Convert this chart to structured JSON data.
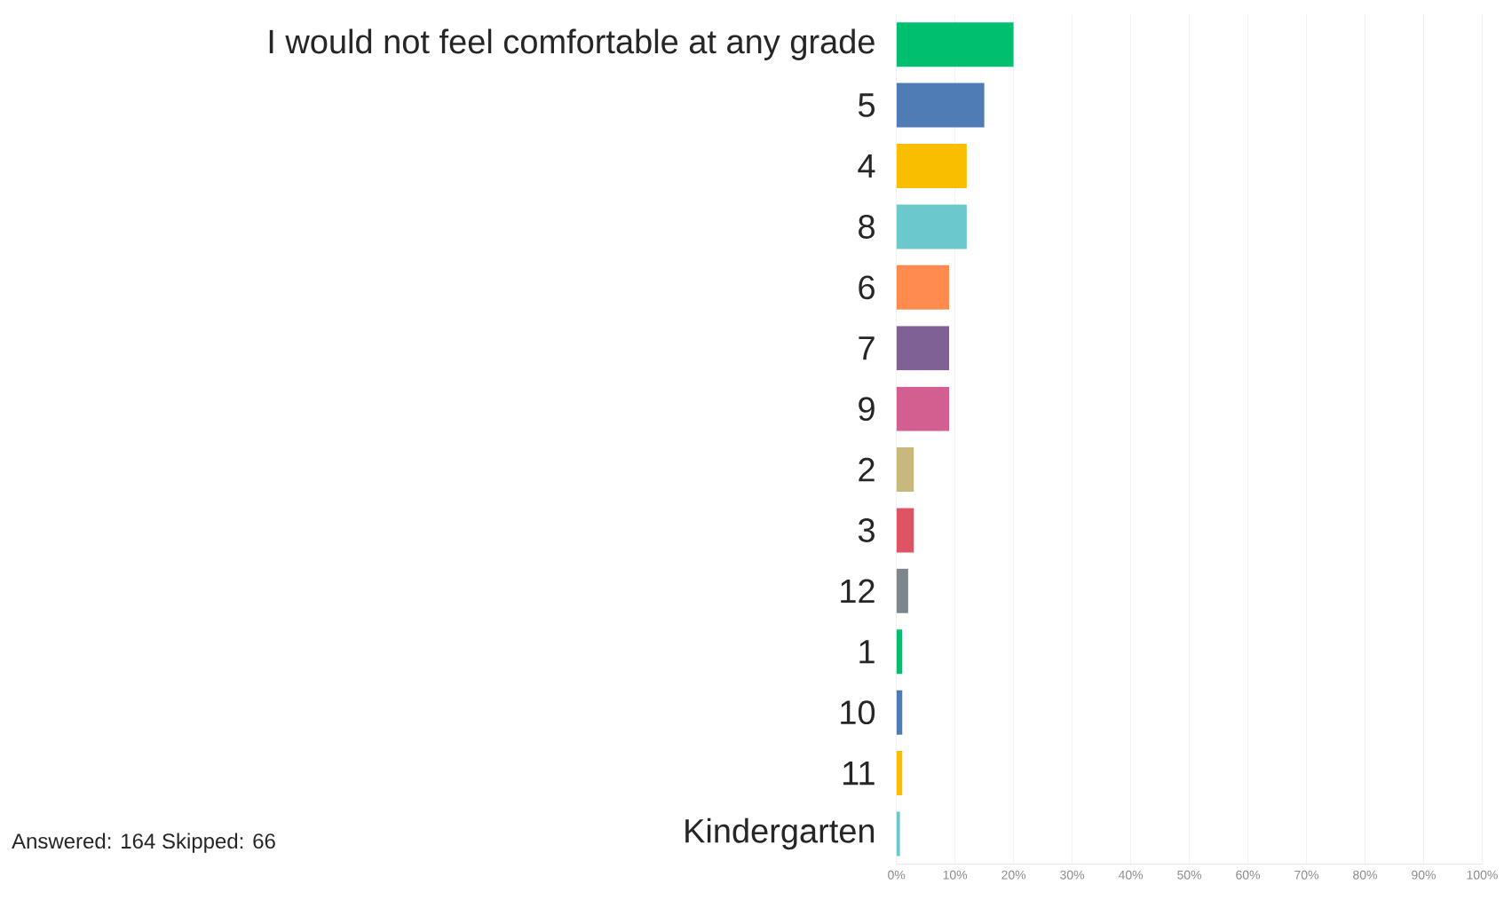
{
  "chart_data": {
    "type": "bar",
    "orientation": "horizontal",
    "categories": [
      "I would not feel comfortable at any grade",
      "5",
      "4",
      "8",
      "6",
      "7",
      "9",
      "2",
      "3",
      "12",
      "1",
      "10",
      "11",
      "Kindergarten"
    ],
    "values": [
      20,
      15,
      12,
      12,
      9,
      9,
      9,
      3,
      3,
      2,
      1,
      1,
      1,
      0.6
    ],
    "colors": [
      "#00bf6f",
      "#507cb6",
      "#f9be00",
      "#6bc8cd",
      "#ff8b4f",
      "#7f6195",
      "#d25f90",
      "#c9b87d",
      "#df5464",
      "#7d868c",
      "#00bf6f",
      "#507cb6",
      "#f9be00",
      "#6bc8cd"
    ],
    "xlim": [
      0,
      100
    ],
    "xticks": [
      {
        "value": 0,
        "label": "0%"
      },
      {
        "value": 10,
        "label": "10%"
      },
      {
        "value": 20,
        "label": "20%"
      },
      {
        "value": 30,
        "label": "30%"
      },
      {
        "value": 40,
        "label": "40%"
      },
      {
        "value": 50,
        "label": "50%"
      },
      {
        "value": 60,
        "label": "60%"
      },
      {
        "value": 70,
        "label": "70%"
      },
      {
        "value": 80,
        "label": "80%"
      },
      {
        "value": 90,
        "label": "90%"
      },
      {
        "value": 100,
        "label": "100%"
      }
    ],
    "grid": "x",
    "annotations": [
      "Answered: 164 Skipped: 66"
    ]
  }
}
